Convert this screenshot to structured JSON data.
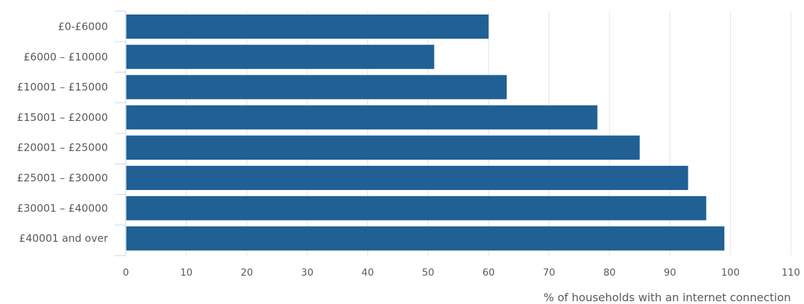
{
  "chart_data": {
    "type": "bar",
    "orientation": "horizontal",
    "categories": [
      "£0-£6000",
      "£6000 – £10000",
      "£10001 – £15000",
      "£15001 – £20000",
      "£20001 – £25000",
      "£25001 – £30000",
      "£30001 – £40000",
      "£40001 and over"
    ],
    "values": [
      60,
      51,
      63,
      78,
      85,
      93,
      96,
      99
    ],
    "xticks": [
      0,
      10,
      20,
      30,
      40,
      50,
      60,
      70,
      80,
      90,
      100,
      110
    ],
    "xlim": [
      0,
      110
    ],
    "xlabel": "% of households with an internet connection",
    "ylabel": "",
    "title": "",
    "grid": "vertical",
    "bar_color": "#206095",
    "grid_color": "#e3e3e3",
    "axis_color": "#ccd6eb",
    "text_color": "#595959"
  }
}
